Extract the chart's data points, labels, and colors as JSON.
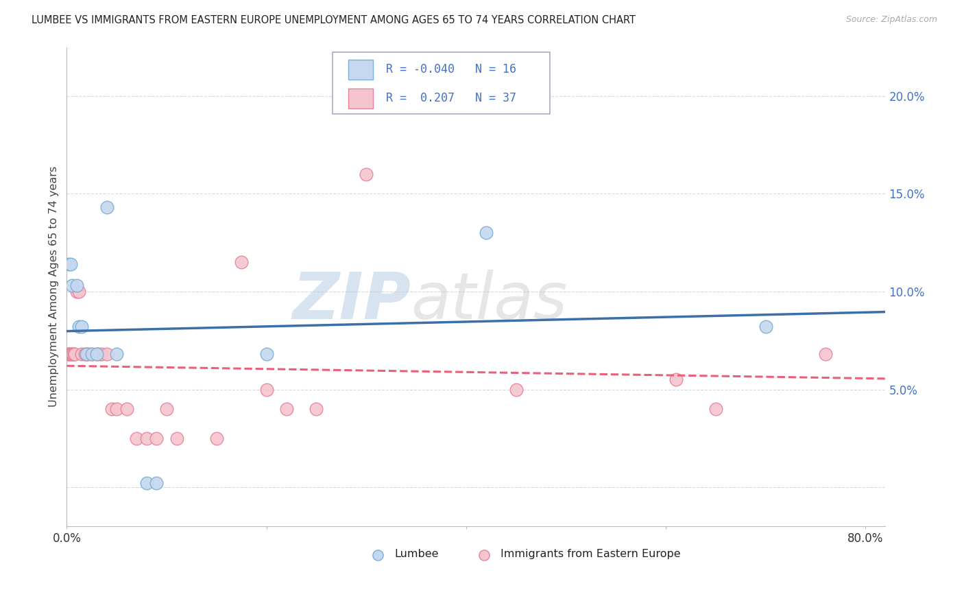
{
  "title": "LUMBEE VS IMMIGRANTS FROM EASTERN EUROPE UNEMPLOYMENT AMONG AGES 65 TO 74 YEARS CORRELATION CHART",
  "source": "Source: ZipAtlas.com",
  "ylabel": "Unemployment Among Ages 65 to 74 years",
  "xlim": [
    0.0,
    0.82
  ],
  "ylim": [
    -0.02,
    0.225
  ],
  "xticks": [
    0.0,
    0.2,
    0.4,
    0.6,
    0.8
  ],
  "xticklabels": [
    "0.0%",
    "",
    "",
    "",
    "80.0%"
  ],
  "yticks_left": [],
  "yticks_right": [
    0.0,
    0.05,
    0.1,
    0.15,
    0.2
  ],
  "yticklabels_right": [
    "",
    "5.0%",
    "10.0%",
    "15.0%",
    "20.0%"
  ],
  "lumbee_fill": "#c5d8ef",
  "lumbee_edge": "#7aaed6",
  "ee_fill": "#f5c5cf",
  "ee_edge": "#e8829a",
  "lumbee_line_color": "#3a6faa",
  "ee_line_color": "#e8607a",
  "lumbee_R": -0.04,
  "lumbee_N": 16,
  "ee_R": 0.207,
  "ee_N": 37,
  "legend_R_color": "#4472c4",
  "right_axis_color": "#4472c4",
  "grid_color": "#d8d8e8",
  "title_color": "#222222",
  "source_color": "#aaaaaa",
  "ylabel_color": "#444444",
  "bottom_label_color": "#222222",
  "lumbee_points": [
    [
      0.002,
      0.114
    ],
    [
      0.004,
      0.114
    ],
    [
      0.005,
      0.103
    ],
    [
      0.01,
      0.103
    ],
    [
      0.012,
      0.082
    ],
    [
      0.015,
      0.082
    ],
    [
      0.02,
      0.068
    ],
    [
      0.025,
      0.068
    ],
    [
      0.03,
      0.068
    ],
    [
      0.04,
      0.143
    ],
    [
      0.05,
      0.068
    ],
    [
      0.08,
      0.002
    ],
    [
      0.09,
      0.002
    ],
    [
      0.2,
      0.068
    ],
    [
      0.42,
      0.13
    ],
    [
      0.7,
      0.082
    ]
  ],
  "ee_points": [
    [
      0.001,
      0.068
    ],
    [
      0.002,
      0.068
    ],
    [
      0.003,
      0.068
    ],
    [
      0.004,
      0.068
    ],
    [
      0.005,
      0.068
    ],
    [
      0.006,
      0.068
    ],
    [
      0.007,
      0.068
    ],
    [
      0.008,
      0.068
    ],
    [
      0.01,
      0.1
    ],
    [
      0.012,
      0.1
    ],
    [
      0.015,
      0.068
    ],
    [
      0.018,
      0.068
    ],
    [
      0.02,
      0.068
    ],
    [
      0.022,
      0.068
    ],
    [
      0.025,
      0.068
    ],
    [
      0.03,
      0.068
    ],
    [
      0.032,
      0.068
    ],
    [
      0.035,
      0.068
    ],
    [
      0.04,
      0.068
    ],
    [
      0.045,
      0.04
    ],
    [
      0.05,
      0.04
    ],
    [
      0.06,
      0.04
    ],
    [
      0.07,
      0.025
    ],
    [
      0.08,
      0.025
    ],
    [
      0.09,
      0.025
    ],
    [
      0.1,
      0.04
    ],
    [
      0.11,
      0.025
    ],
    [
      0.15,
      0.025
    ],
    [
      0.175,
      0.115
    ],
    [
      0.2,
      0.05
    ],
    [
      0.22,
      0.04
    ],
    [
      0.25,
      0.04
    ],
    [
      0.3,
      0.16
    ],
    [
      0.45,
      0.05
    ],
    [
      0.61,
      0.055
    ],
    [
      0.65,
      0.04
    ],
    [
      0.76,
      0.068
    ]
  ],
  "watermark_text": "ZIPatlas",
  "background_color": "#ffffff"
}
